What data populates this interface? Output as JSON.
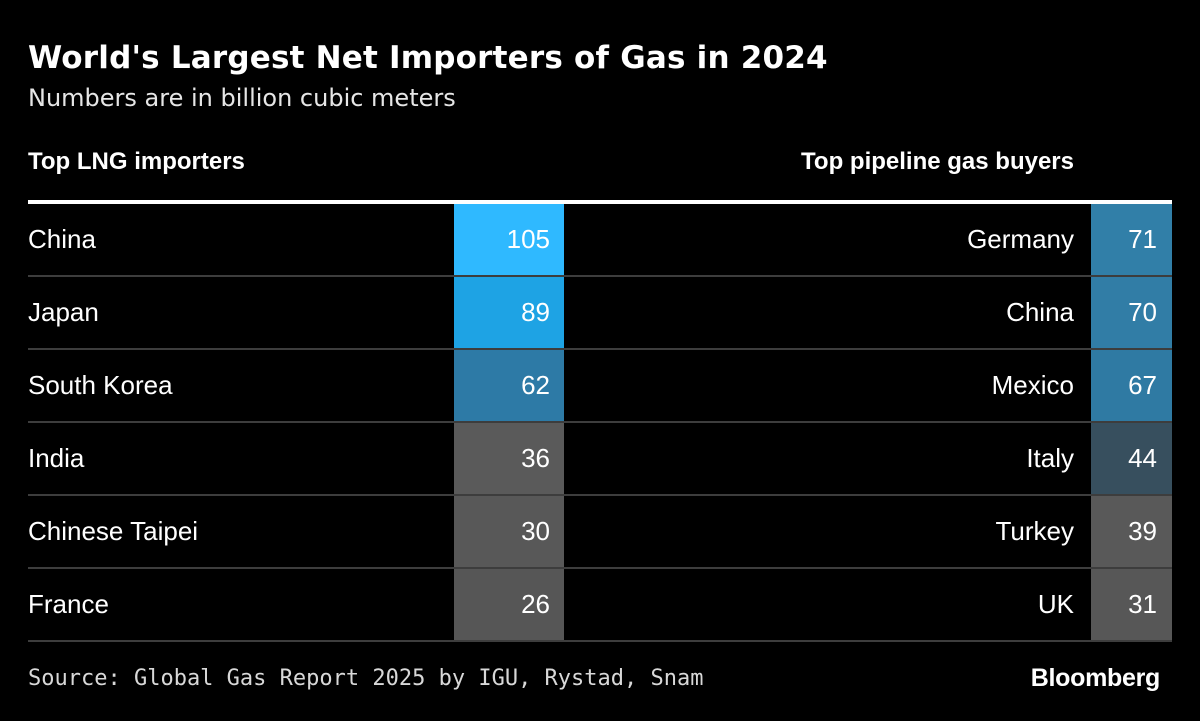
{
  "title": "World's Largest Net Importers of Gas in 2024",
  "subtitle": "Numbers are in billion cubic meters",
  "source": "Source: Global Gas Report 2025 by IGU, Rystad, Snam",
  "brand": "Bloomberg",
  "chart_data": {
    "type": "table",
    "title": "World's Largest Net Importers of Gas in 2024",
    "subtitle": "Numbers are in billion cubic meters",
    "left": {
      "header": "Top LNG importers",
      "rows": [
        {
          "name": "China",
          "value": 105,
          "color": "#2fb9ff"
        },
        {
          "name": "Japan",
          "value": 89,
          "color": "#1ea3e4"
        },
        {
          "name": "South Korea",
          "value": 62,
          "color": "#2d7aa6"
        },
        {
          "name": "India",
          "value": 36,
          "color": "#5a5a5a"
        },
        {
          "name": "Chinese Taipei",
          "value": 30,
          "color": "#585858"
        },
        {
          "name": "France",
          "value": 26,
          "color": "#565656"
        }
      ]
    },
    "right": {
      "header": "Top pipeline gas buyers",
      "rows": [
        {
          "name": "Germany",
          "value": 71,
          "color": "#317fa8"
        },
        {
          "name": "China",
          "value": 70,
          "color": "#317da6"
        },
        {
          "name": "Mexico",
          "value": 67,
          "color": "#2f7aa3"
        },
        {
          "name": "Italy",
          "value": 44,
          "color": "#374f5e"
        },
        {
          "name": "Turkey",
          "value": 39,
          "color": "#595959"
        },
        {
          "name": "UK",
          "value": 31,
          "color": "#575757"
        }
      ]
    }
  }
}
